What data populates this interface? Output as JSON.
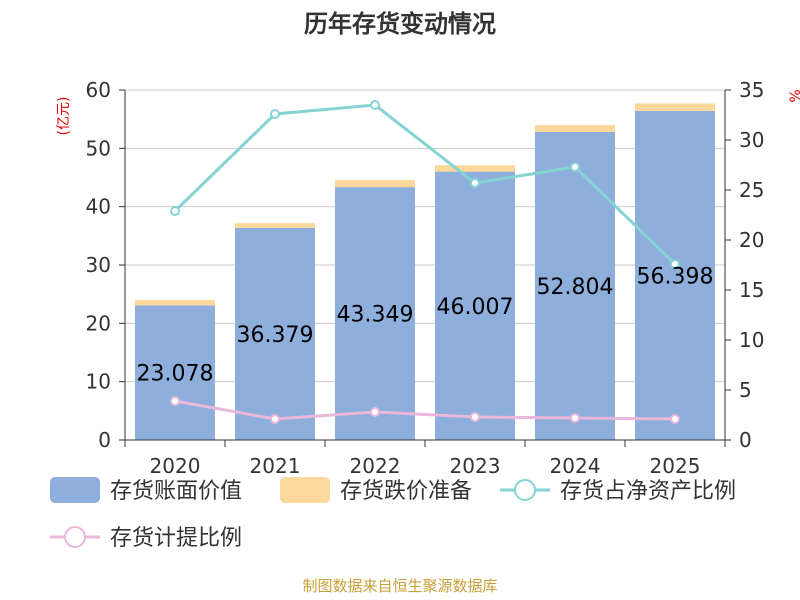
{
  "title": "历年存货变动情况",
  "source": "制图数据来自恒生聚源数据库",
  "left_unit": "(亿元)",
  "right_unit": "%",
  "colors": {
    "book_value": "#8eaedc",
    "provision": "#fcd89c",
    "ratio_net_assets": "#86d3d3",
    "provision_ratio": "#e9b8da",
    "unit_text": "#e60000",
    "source_text": "#c8a038"
  },
  "chart_data": {
    "type": "bar",
    "title": "历年存货变动情况",
    "categories": [
      "2020",
      "2021",
      "2022",
      "2023",
      "2024",
      "2025"
    ],
    "left_axis": {
      "label": "(亿元)",
      "ylim": [
        0,
        60
      ],
      "ticks": [
        "0",
        "10",
        "20",
        "30",
        "40",
        "50",
        "60"
      ]
    },
    "right_axis": {
      "label": "%",
      "ylim": [
        0,
        35
      ],
      "ticks": [
        "0",
        "5",
        "10",
        "15",
        "20",
        "25",
        "30",
        "35"
      ]
    },
    "series": [
      {
        "name": "存货账面价值",
        "type": "bar",
        "stack": "inv",
        "axis": "left",
        "values": [
          23.078,
          36.379,
          43.349,
          46.007,
          52.804,
          56.398
        ],
        "labels": [
          "23.078",
          "36.379",
          "43.349",
          "46.007",
          "52.804",
          "56.398"
        ]
      },
      {
        "name": "存货跌价准备",
        "type": "bar",
        "stack": "inv",
        "axis": "left",
        "values": [
          0.9,
          0.8,
          1.2,
          1.1,
          1.2,
          1.3
        ]
      },
      {
        "name": "存货占净资产比例",
        "type": "line",
        "axis": "right",
        "values": [
          22.9,
          32.6,
          33.5,
          25.7,
          27.3,
          17.6
        ]
      },
      {
        "name": "存货计提比例",
        "type": "line",
        "axis": "right",
        "values": [
          3.9,
          2.1,
          2.8,
          2.3,
          2.2,
          2.1
        ]
      }
    ],
    "grid": true,
    "legend_position": "bottom"
  }
}
